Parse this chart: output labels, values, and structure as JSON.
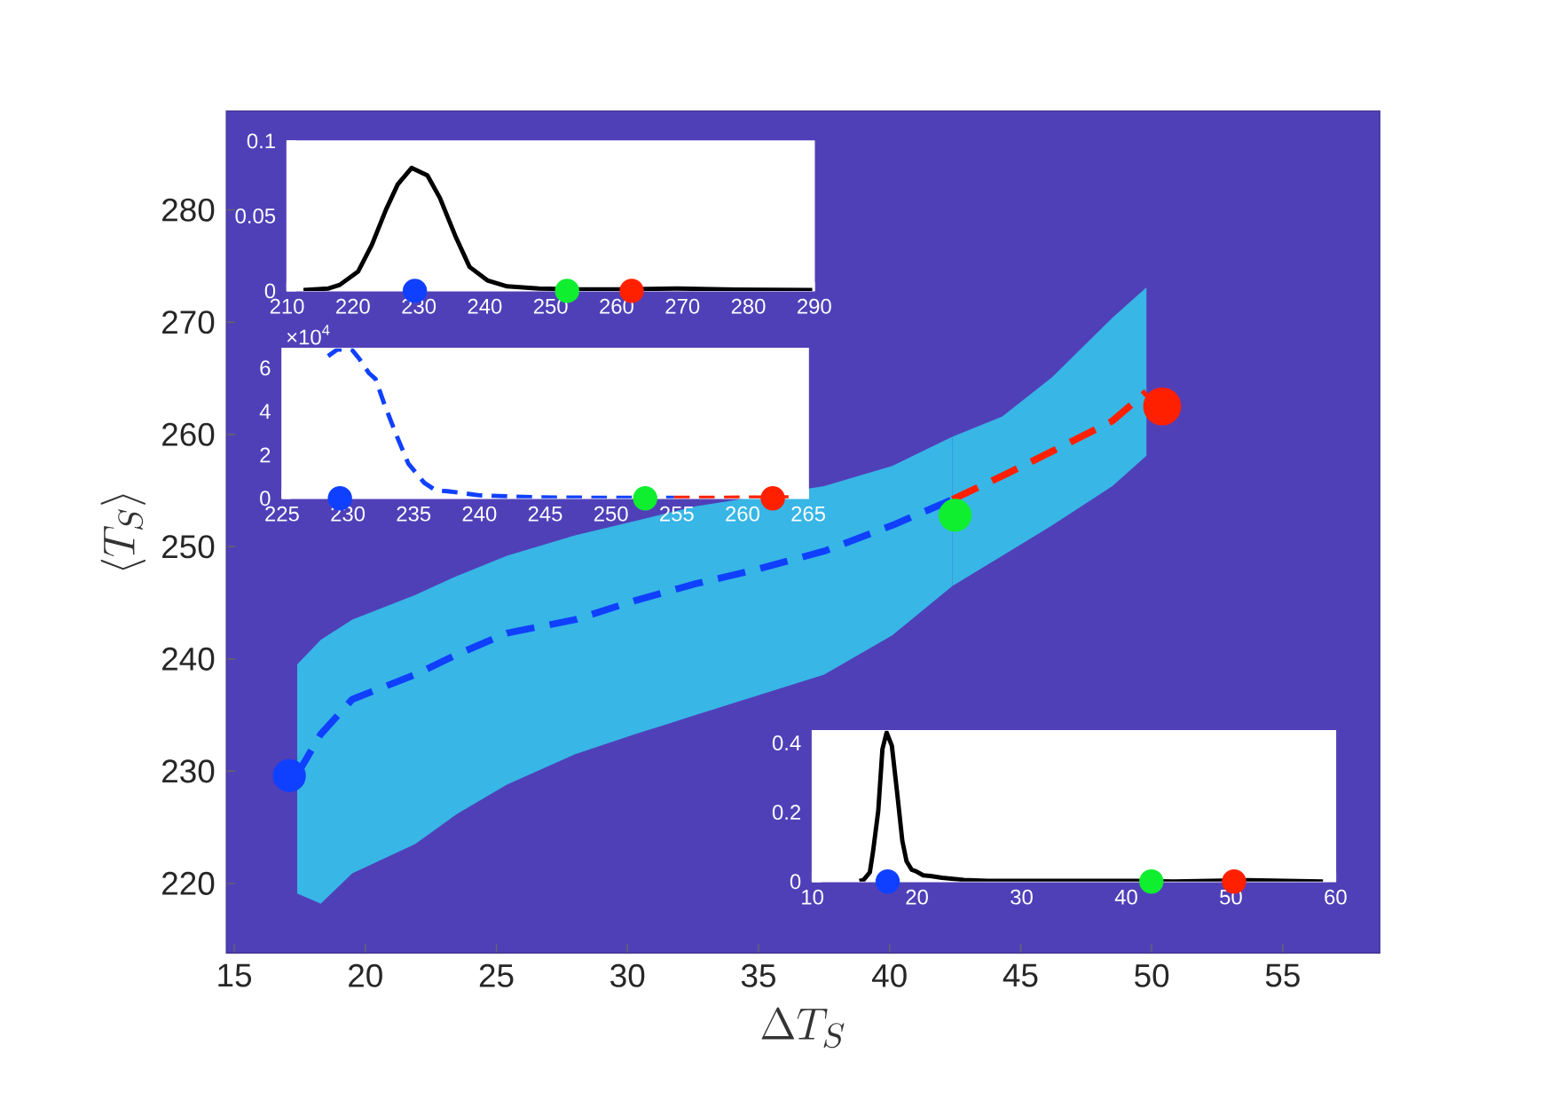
{
  "chart_data": [
    {
      "type": "line",
      "xlabel": "\\Delta T_S",
      "ylabel": "\\langle T_S \\rangle",
      "xlim": [
        14.7,
        58.7
      ],
      "ylim": [
        213.8,
        288.8
      ],
      "xticks": [
        15,
        20,
        25,
        30,
        35,
        40,
        45,
        50,
        55
      ],
      "yticks": [
        220,
        230,
        240,
        250,
        260,
        270,
        280
      ],
      "line_style": "dashed",
      "series": [
        {
          "color": "#1040ff",
          "x": [
            17.4,
            18.3,
            19.5,
            21.9,
            23.5,
            25.4,
            28.0,
            30.3,
            32.6,
            34.8,
            37.5,
            40.1,
            42.4
          ],
          "values": [
            229.7,
            233.3,
            236.4,
            238.6,
            240.4,
            242.3,
            243.5,
            245.2,
            246.7,
            247.9,
            249.6,
            251.9,
            254.2
          ],
          "lower": [
            219.1,
            218.2,
            220.9,
            223.5,
            226.2,
            228.8,
            231.5,
            233.3,
            235.0,
            null,
            238.6,
            242.1,
            246.5
          ],
          "upper": [
            239.5,
            241.7,
            243.5,
            245.7,
            247.4,
            249.2,
            251.0,
            252.3,
            253.6,
            null,
            255.4,
            257.2,
            259.8
          ]
        },
        {
          "color": "#ff2000",
          "x": [
            42.4,
            44.3,
            46.2,
            48.5,
            49.8
          ],
          "values": [
            254.2,
            256.3,
            258.5,
            261.2,
            263.8
          ],
          "lower": [
            246.5,
            249.2,
            251.9,
            255.4,
            258.1
          ],
          "upper": [
            259.8,
            261.6,
            265.1,
            270.4,
            273.1
          ]
        },
        {
          "type": "scatter",
          "marker": "circle",
          "color": "#1040ff",
          "x": [
            17.1
          ],
          "values": [
            229.6
          ]
        },
        {
          "type": "scatter",
          "marker": "circle",
          "color": "#10ee30",
          "x": [
            42.5
          ],
          "values": [
            252.8
          ]
        },
        {
          "type": "scatter",
          "marker": "circle",
          "color": "#ff2000",
          "x": [
            50.4
          ],
          "values": [
            262.5
          ]
        }
      ]
    },
    {
      "type": "line",
      "xlim": [
        210,
        290
      ],
      "ylim": [
        0,
        0.1
      ],
      "xticks": [
        210,
        220,
        230,
        240,
        250,
        260,
        270,
        280,
        290
      ],
      "yticks": [
        0,
        0.05,
        0.1
      ],
      "line_style": "solid",
      "series": [
        {
          "color": "#000000",
          "x": [
            212.5,
            216.3,
            218.0,
            220.8,
            222.9,
            225.0,
            226.8,
            228.9,
            231.3,
            233.2,
            235.6,
            237.7,
            240.4,
            243.4,
            248.2,
            254.2,
            260.2,
            269.2,
            278.2,
            289.7
          ],
          "values": [
            0.0005,
            0.0016,
            0.004,
            0.013,
            0.031,
            0.054,
            0.071,
            0.082,
            0.077,
            0.062,
            0.036,
            0.016,
            0.007,
            0.003,
            0.0016,
            0.001,
            0.001,
            0.0016,
            0.0008,
            0.0005
          ]
        },
        {
          "type": "scatter",
          "marker": "circle",
          "color": "#1040ff",
          "x": [
            229.4
          ],
          "values": [
            0
          ]
        },
        {
          "type": "scatter",
          "marker": "circle",
          "color": "#10ee30",
          "x": [
            252.5
          ],
          "values": [
            0
          ]
        },
        {
          "type": "scatter",
          "marker": "circle",
          "color": "#ff2000",
          "x": [
            262.3
          ],
          "values": [
            0
          ]
        }
      ]
    },
    {
      "type": "line",
      "xlim": [
        225,
        265
      ],
      "ylim": [
        0,
        6.9
      ],
      "xticks": [
        225,
        230,
        235,
        240,
        245,
        250,
        255,
        260,
        265
      ],
      "yticks": [
        0,
        2,
        4,
        6
      ],
      "annotations": [
        "×10$^{4}$"
      ],
      "line_style": "dashed",
      "series": [
        {
          "color": "#1040ff",
          "x": [
            228.5,
            229.2,
            230.3,
            230.9,
            231.6,
            232.1,
            232.8,
            233.7,
            234.6,
            235.8,
            236.7,
            237.6,
            240.0,
            244.5,
            250.6,
            254.8
          ],
          "values": [
            6.55,
            6.85,
            6.85,
            6.4,
            5.77,
            5.5,
            4.3,
            2.9,
            1.6,
            0.72,
            0.36,
            0.33,
            0.14,
            0.04,
            0.02,
            0.02
          ]
        },
        {
          "color": "#ff2000",
          "x": [
            254.8,
            263.5
          ],
          "values": [
            0.02,
            0.04
          ]
        },
        {
          "type": "scatter",
          "marker": "circle",
          "color": "#1040ff",
          "x": [
            229.4
          ],
          "values": [
            0
          ]
        },
        {
          "type": "scatter",
          "marker": "circle",
          "color": "#10ee30",
          "x": [
            252.6
          ],
          "values": [
            0
          ]
        },
        {
          "type": "scatter",
          "marker": "circle",
          "color": "#ff2000",
          "x": [
            262.3
          ],
          "values": [
            0
          ]
        }
      ]
    },
    {
      "type": "line",
      "xlim": [
        10,
        60
      ],
      "ylim": [
        0,
        0.435
      ],
      "xticks": [
        10,
        20,
        30,
        40,
        50,
        60
      ],
      "yticks": [
        0,
        0.2,
        0.4
      ],
      "line_style": "solid",
      "series": [
        {
          "color": "#000000",
          "x": [
            14.5,
            14.9,
            15.5,
            15.8,
            16.3,
            16.7,
            17.1,
            17.6,
            18.1,
            18.6,
            19.0,
            19.5,
            19.9,
            20.6,
            21.3,
            22.4,
            24.5,
            26.7,
            33.8,
            40.9,
            44.5,
            51.6,
            58.8
          ],
          "values": [
            0.002,
            0.005,
            0.027,
            0.086,
            0.204,
            0.382,
            0.43,
            0.392,
            0.258,
            0.118,
            0.059,
            0.034,
            0.03,
            0.018,
            0.016,
            0.011,
            0.005,
            0.002,
            0.002,
            0.002,
            0,
            0.004,
            0
          ]
        },
        {
          "type": "scatter",
          "marker": "circle",
          "color": "#1040ff",
          "x": [
            17.2
          ],
          "values": [
            0
          ]
        },
        {
          "type": "scatter",
          "marker": "circle",
          "color": "#10ee30",
          "x": [
            42.4
          ],
          "values": [
            0
          ]
        },
        {
          "type": "scatter",
          "marker": "circle",
          "color": "#ff2000",
          "x": [
            50.3
          ],
          "values": [
            0
          ]
        }
      ]
    }
  ]
}
